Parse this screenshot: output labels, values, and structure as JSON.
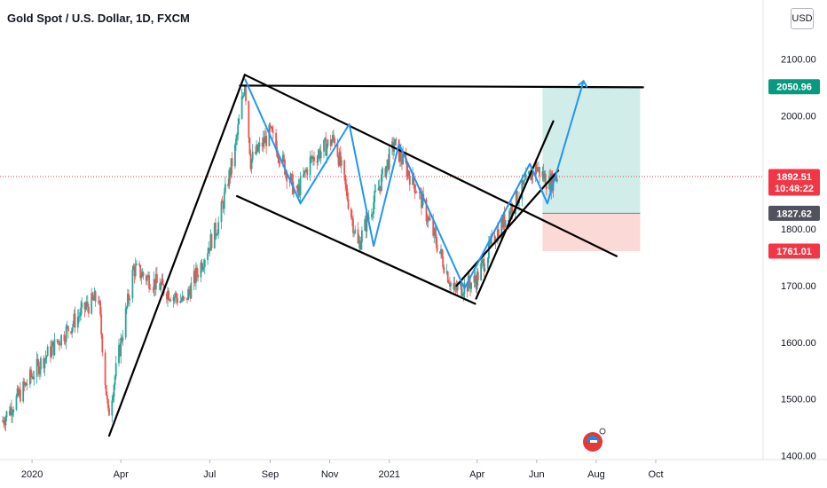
{
  "header": {
    "title": "Gold Spot / U.S. Dollar, 1D, FXCM",
    "currency": "USD"
  },
  "chart_data": {
    "type": "candlestick",
    "title": "Gold Spot / U.S. Dollar, 1D, FXCM",
    "y_ticks": [
      "1400.00",
      "1500.00",
      "1600.00",
      "1700.00",
      "1800.00",
      "2000.00",
      "2100.00"
    ],
    "y_tick_values": [
      1400,
      1500,
      1600,
      1700,
      1800,
      2000,
      2100
    ],
    "ylim": [
      1393,
      2204
    ],
    "x_ticks": [
      "2020",
      "Apr",
      "Jul",
      "Sep",
      "Nov",
      "2021",
      "Apr",
      "Jun",
      "Aug",
      "Oct"
    ],
    "x_tick_dates": [
      "2020-01-01",
      "2020-04-01",
      "2020-07-01",
      "2020-09-01",
      "2020-11-01",
      "2021-01-01",
      "2021-04-01",
      "2021-06-01",
      "2021-08-01",
      "2021-10-01"
    ],
    "price_labels": [
      {
        "name": "take-profit",
        "text": "2050.96",
        "value": 2050.96,
        "color": "#089981"
      },
      {
        "name": "last-price",
        "text": "1892.51",
        "value": 1892.51,
        "color": "#f23645",
        "countdown": "10:48:22"
      },
      {
        "name": "entry",
        "text": "1827.62",
        "value": 1827.62,
        "color": "#50535e"
      },
      {
        "name": "stop-loss",
        "text": "1761.01",
        "value": 1761.01,
        "color": "#f23645"
      }
    ],
    "colors": {
      "up": "#26a69a",
      "down": "#ef5350",
      "trendline": "#000000",
      "zigzag": "#2196f3",
      "profit_zone": "#d1ede9",
      "loss_zone": "#fad9d6",
      "last_price_line": "#f23645"
    },
    "trendlines": [
      {
        "from": [
          "2020-03-20",
          1435
        ],
        "to": [
          "2020-08-06",
          2072
        ]
      },
      {
        "from": [
          "2020-08-06",
          2072
        ],
        "to": [
          "2021-08-22",
          1752
        ]
      },
      {
        "from": [
          "2020-07-29",
          1858
        ],
        "to": [
          "2021-03-30",
          1668
        ]
      },
      {
        "from": [
          "2020-08-01",
          2053
        ],
        "to": [
          "2021-09-18",
          2050
        ]
      },
      {
        "from": [
          "2021-03-31",
          1677
        ],
        "to": [
          "2021-06-18",
          1990
        ]
      },
      {
        "from": [
          "2021-03-11",
          1700
        ],
        "to": [
          "2021-06-23",
          1903
        ]
      }
    ],
    "zigzag": [
      [
        "2020-08-06",
        2065
      ],
      [
        "2020-10-02",
        1845
      ],
      [
        "2020-11-21",
        1985
      ],
      [
        "2020-12-16",
        1770
      ],
      [
        "2021-01-11",
        1950
      ],
      [
        "2021-03-19",
        1695
      ],
      [
        "2021-05-25",
        1915
      ],
      [
        "2021-06-12",
        1845
      ],
      [
        "2021-07-19",
        2061
      ]
    ],
    "position": {
      "start": "2021-06-07",
      "end": "2021-09-15",
      "take_profit": 2050.96,
      "entry": 1827.62,
      "stop": 1761.01
    }
  }
}
